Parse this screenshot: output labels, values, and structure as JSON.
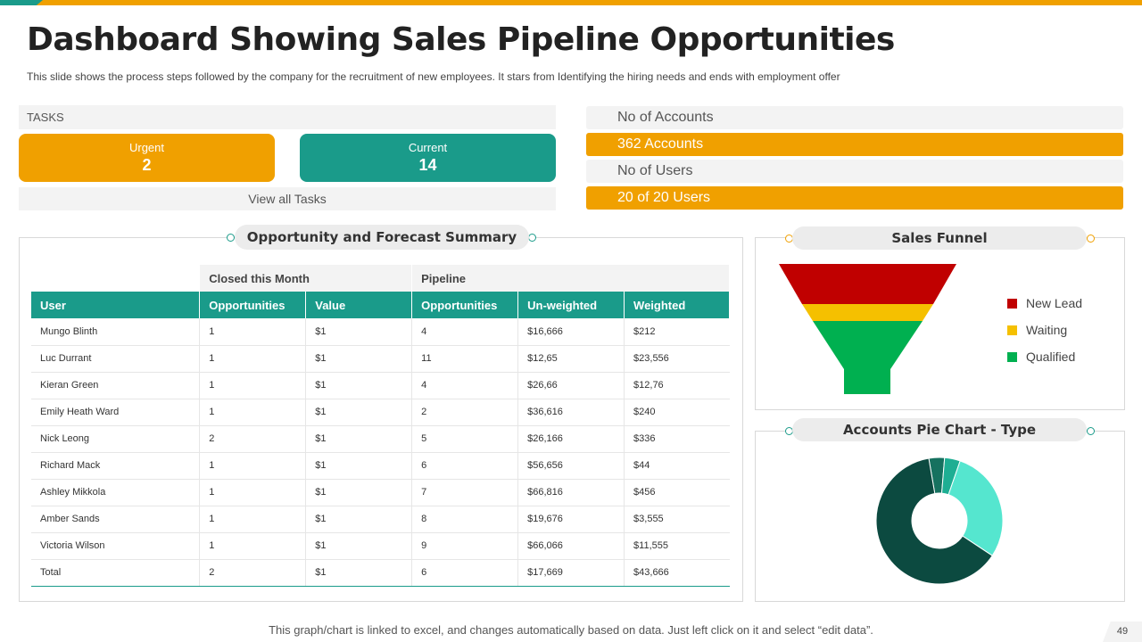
{
  "header": {
    "title": "Dashboard Showing Sales Pipeline Opportunities",
    "subtitle": "This slide shows the process steps followed  by the company for the recruitment of new employees. It stars from Identifying the hiring  needs and ends with employment offer"
  },
  "colors": {
    "orange": "#f0a000",
    "teal": "#1a9b8a",
    "red": "#c00000",
    "yellow": "#f5c000",
    "green": "#00b050"
  },
  "tasks": {
    "header": "TASKS",
    "urgent": {
      "label": "Urgent",
      "count": "2"
    },
    "current": {
      "label": "Current",
      "count": "14"
    },
    "view_all": "View all Tasks"
  },
  "accounts": {
    "accounts_label": "No of Accounts",
    "accounts_value": "362 Accounts",
    "users_label": "No of Users",
    "users_value": "20 of 20 Users"
  },
  "summary": {
    "title": "Opportunity and Forecast Summary",
    "groups": {
      "closed": "Closed this Month",
      "pipeline": "Pipeline"
    },
    "columns": [
      "User",
      "Opportunities",
      "Value",
      "Opportunities",
      "Un-weighted",
      "Weighted"
    ],
    "rows": [
      [
        "Mungo Blinth",
        "1",
        "$1",
        "4",
        "$16,666",
        "$212"
      ],
      [
        "Luc Durrant",
        "1",
        "$1",
        "11",
        "$12,65",
        "$23,556"
      ],
      [
        "Kieran Green",
        "1",
        "$1",
        "4",
        "$26,66",
        "$12,76"
      ],
      [
        "Emily  Heath Ward",
        "1",
        "$1",
        "2",
        "$36,616",
        "$240"
      ],
      [
        "Nick Leong",
        "2",
        "$1",
        "5",
        "$26,166",
        "$336"
      ],
      [
        "Richard Mack",
        "1",
        "$1",
        "6",
        "$56,656",
        "$44"
      ],
      [
        "Ashley Mikkola",
        "1",
        "$1",
        "7",
        "$66,816",
        "$456"
      ],
      [
        "Amber Sands",
        "1",
        "$1",
        "8",
        "$19,676",
        "$3,555"
      ],
      [
        "Victoria Wilson",
        "1",
        "$1",
        "9",
        "$66,066",
        "$11,555"
      ],
      [
        "Total",
        "2",
        "$1",
        "6",
        "$17,669",
        "$43,666"
      ]
    ]
  },
  "funnel": {
    "title": "Sales Funnel",
    "legend": [
      "New Lead",
      "Waiting",
      "Qualified"
    ]
  },
  "pie": {
    "title": "Accounts Pie Chart - Type"
  },
  "chart_data": [
    {
      "type": "funnel",
      "title": "Sales Funnel",
      "stages": [
        {
          "name": "New Lead",
          "color": "#c00000"
        },
        {
          "name": "Waiting",
          "color": "#f5c000"
        },
        {
          "name": "Qualified",
          "color": "#00b050"
        }
      ]
    },
    {
      "type": "pie",
      "title": "Accounts Pie Chart - Type",
      "donut": true,
      "slices": [
        {
          "value": 4,
          "color": "#16715f"
        },
        {
          "value": 4,
          "color": "#1eae93"
        },
        {
          "value": 29,
          "color": "#55e6cf"
        },
        {
          "value": 63,
          "color": "#0c4a40"
        }
      ]
    }
  ],
  "footer": {
    "note": "This graph/chart is linked to excel, and changes automatically based on data. Just left click on it and select “edit data”.",
    "page": "49"
  }
}
